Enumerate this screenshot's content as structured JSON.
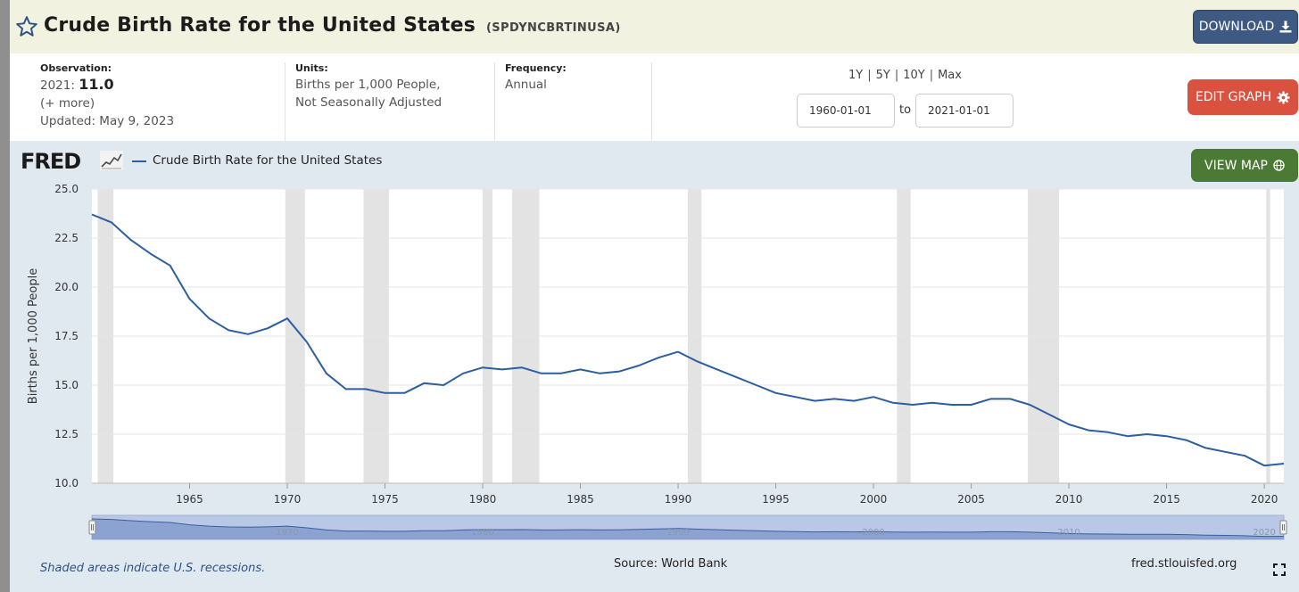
{
  "header": {
    "title": "Crude Birth Rate for the United States",
    "series_id": "(SPDYNCBRTINUSA)",
    "download_label": "DOWNLOAD"
  },
  "meta": {
    "observation_label": "Observation:",
    "observation_year": "2021:",
    "observation_value": "11.0",
    "more_link": "(+ more)",
    "updated": "Updated: May 9, 2023",
    "units_label": "Units:",
    "units_line1": "Births per 1,000 People,",
    "units_line2": "Not Seasonally Adjusted",
    "frequency_label": "Frequency:",
    "frequency_value": "Annual",
    "ranges": [
      "1Y",
      "5Y",
      "10Y",
      "Max"
    ],
    "date_start": "1960-01-01",
    "to_label": "to",
    "date_end": "2021-01-01",
    "edit_label": "EDIT GRAPH"
  },
  "chart_header": {
    "logo": "FRED",
    "legend": "Crude Birth Rate for the United States",
    "view_map_label": "VIEW MAP"
  },
  "footer": {
    "recession_note": "Shaded areas indicate U.S. recessions.",
    "source": "Source: World Bank",
    "site": "fred.stlouisfed.org"
  },
  "colors": {
    "line": "#2d5e9f",
    "recession": "#e3e3e3",
    "download_btn": "#3e5a83",
    "edit_btn": "#d9513f",
    "map_btn": "#4b7a34"
  },
  "chart_data": {
    "type": "line",
    "title": "",
    "xlabel": "",
    "ylabel": "Births per 1,000 People",
    "xlim": [
      1960,
      2021
    ],
    "ylim": [
      10.0,
      25.0
    ],
    "y_ticks": [
      "10.0",
      "12.5",
      "15.0",
      "17.5",
      "20.0",
      "22.5",
      "25.0"
    ],
    "x_ticks": [
      "1965",
      "1970",
      "1975",
      "1980",
      "1985",
      "1990",
      "1995",
      "2000",
      "2005",
      "2010",
      "2015",
      "2020"
    ],
    "navigator_ticks": [
      "1970",
      "1980",
      "1990",
      "2000",
      "2010",
      "2020"
    ],
    "grid": true,
    "recessions": [
      [
        1960.3,
        1961.1
      ],
      [
        1969.9,
        1970.9
      ],
      [
        1973.9,
        1975.2
      ],
      [
        1980.0,
        1980.5
      ],
      [
        1981.5,
        1982.9
      ],
      [
        1990.5,
        1991.2
      ],
      [
        2001.2,
        2001.9
      ],
      [
        2007.9,
        2009.5
      ],
      [
        2020.1,
        2020.3
      ]
    ],
    "series": [
      {
        "name": "Crude Birth Rate for the United States",
        "x": [
          1960,
          1961,
          1962,
          1963,
          1964,
          1965,
          1966,
          1967,
          1968,
          1969,
          1970,
          1971,
          1972,
          1973,
          1974,
          1975,
          1976,
          1977,
          1978,
          1979,
          1980,
          1981,
          1982,
          1983,
          1984,
          1985,
          1986,
          1987,
          1988,
          1989,
          1990,
          1991,
          1992,
          1993,
          1994,
          1995,
          1996,
          1997,
          1998,
          1999,
          2000,
          2001,
          2002,
          2003,
          2004,
          2005,
          2006,
          2007,
          2008,
          2009,
          2010,
          2011,
          2012,
          2013,
          2014,
          2015,
          2016,
          2017,
          2018,
          2019,
          2020,
          2021
        ],
        "values": [
          23.7,
          23.3,
          22.4,
          21.7,
          21.1,
          19.4,
          18.4,
          17.8,
          17.6,
          17.9,
          18.4,
          17.2,
          15.6,
          14.8,
          14.8,
          14.6,
          14.6,
          15.1,
          15.0,
          15.6,
          15.9,
          15.8,
          15.9,
          15.6,
          15.6,
          15.8,
          15.6,
          15.7,
          16.0,
          16.4,
          16.7,
          16.2,
          15.8,
          15.4,
          15.0,
          14.6,
          14.4,
          14.2,
          14.3,
          14.2,
          14.4,
          14.1,
          14.0,
          14.1,
          14.0,
          14.0,
          14.3,
          14.3,
          14.0,
          13.5,
          13.0,
          12.7,
          12.6,
          12.4,
          12.5,
          12.4,
          12.2,
          11.8,
          11.6,
          11.4,
          10.9,
          11.0
        ]
      }
    ]
  }
}
